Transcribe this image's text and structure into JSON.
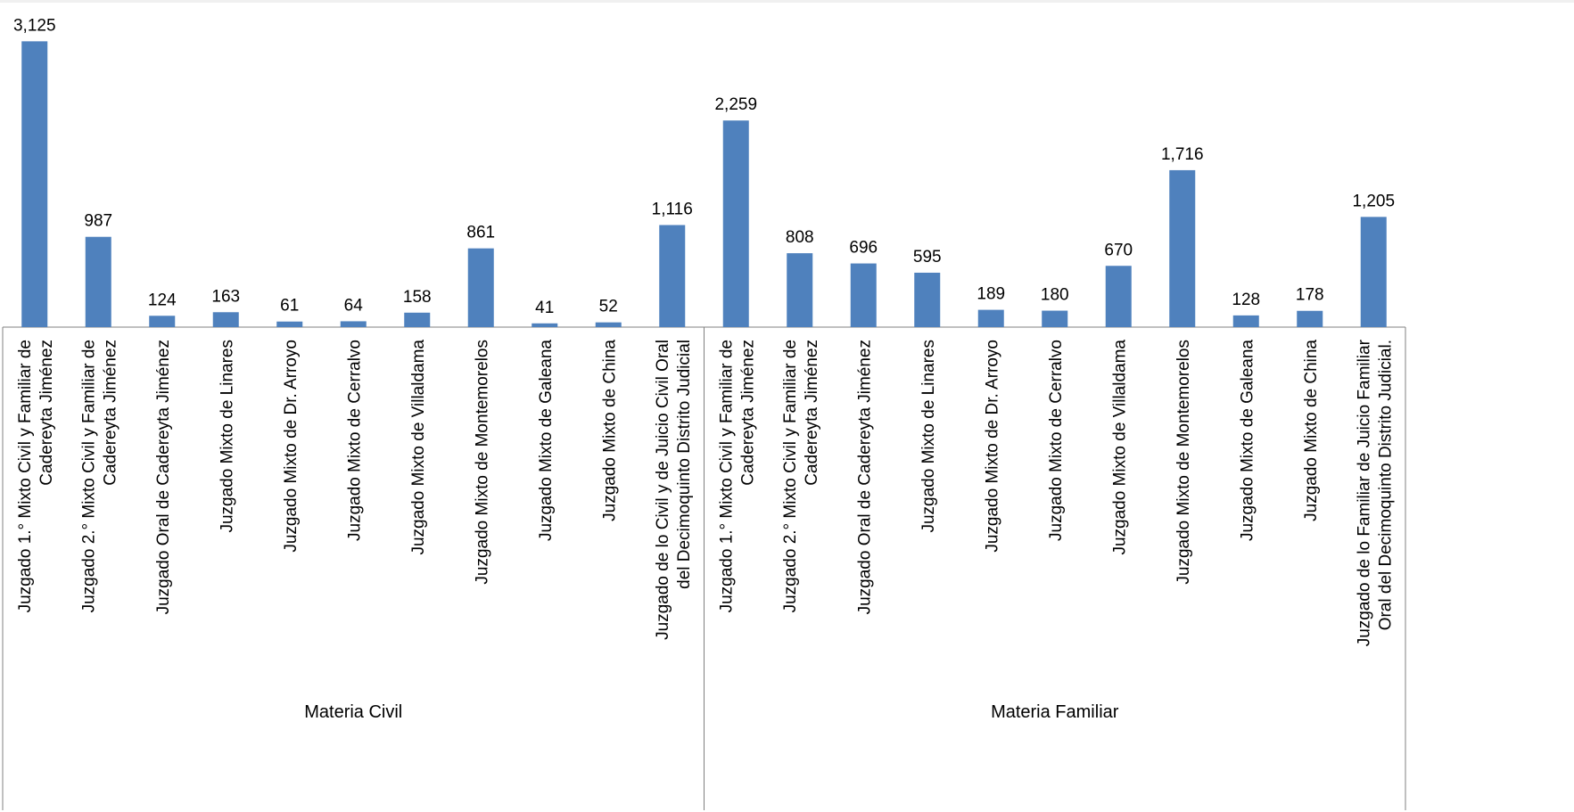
{
  "chart_data": {
    "type": "bar",
    "title": "",
    "xlabel": "",
    "ylabel": "",
    "ylim": [
      0,
      3450
    ],
    "grid": false,
    "legend": "none",
    "bar_color": "#4F81BD",
    "groups": [
      {
        "name": "Materia Civil",
        "categories": [
          [
            "Juzgado 1.° Mixto Civil y Familiar de",
            "Cadereyta Jiménez"
          ],
          [
            "Juzgado 2.° Mixto Civil y Familiar de",
            "Cadereyta Jiménez"
          ],
          [
            "Juzgado Oral de Cadereyta Jiménez"
          ],
          [
            "Juzgado Mixto de Linares"
          ],
          [
            "Juzgado Mixto de Dr. Arroyo"
          ],
          [
            "Juzgado Mixto de Cerralvo"
          ],
          [
            "Juzgado Mixto de Villaldama"
          ],
          [
            "Juzgado Mixto de Montemorelos"
          ],
          [
            "Juzgado Mixto de Galeana"
          ],
          [
            "Juzgado Mixto de China"
          ],
          [
            "Juzgado de lo Civil y de Juicio Civil Oral",
            "del Decimoquinto Distrito Judicial"
          ]
        ],
        "values": [
          3125,
          987,
          124,
          163,
          61,
          64,
          158,
          861,
          41,
          52,
          1116
        ],
        "labels": [
          "3,125",
          "987",
          "124",
          "163",
          "61",
          "64",
          "158",
          "861",
          "41",
          "52",
          "1,116"
        ]
      },
      {
        "name": "Materia Familiar",
        "categories": [
          [
            "Juzgado 1.° Mixto Civil y Familiar de",
            "Cadereyta Jiménez"
          ],
          [
            "Juzgado 2.° Mixto Civil y Familiar de",
            "Cadereyta Jiménez"
          ],
          [
            "Juzgado Oral de Cadereyta Jiménez"
          ],
          [
            "Juzgado Mixto de Linares"
          ],
          [
            "Juzgado Mixto de Dr. Arroyo"
          ],
          [
            "Juzgado Mixto de Cerralvo"
          ],
          [
            "Juzgado Mixto de Villaldama"
          ],
          [
            "Juzgado Mixto de Montemorelos"
          ],
          [
            "Juzgado Mixto de Galeana"
          ],
          [
            "Juzgado Mixto de China"
          ],
          [
            "Juzgado de lo Familiar de Juicio Familiar",
            "Oral del Decimoquinto Distrito Judicial."
          ]
        ],
        "values": [
          2259,
          808,
          696,
          595,
          189,
          180,
          670,
          1716,
          128,
          178,
          1205
        ],
        "labels": [
          "2,259",
          "808",
          "696",
          "595",
          "189",
          "180",
          "670",
          "1,716",
          "128",
          "178",
          "1,205"
        ]
      }
    ]
  }
}
